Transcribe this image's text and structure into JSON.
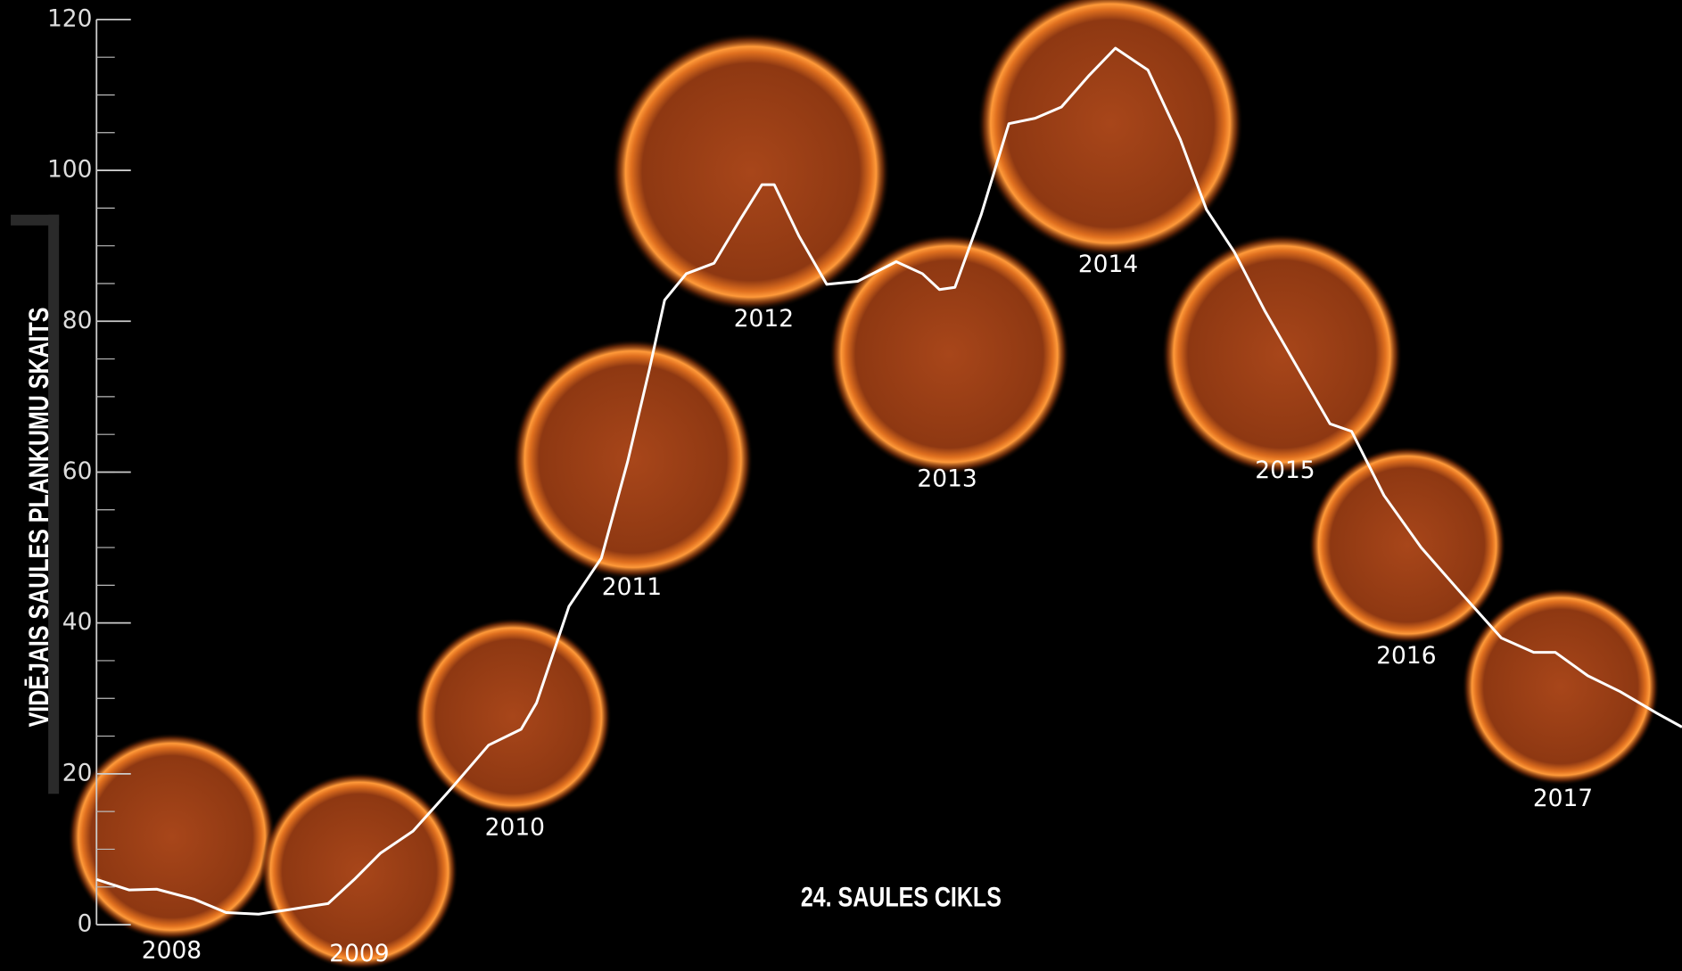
{
  "chart_data": {
    "type": "line",
    "title": "24. SAULES CIKLS",
    "y_label": "VIDĒJAIS SAULES PLANKUMU SKAITS",
    "year_labels": [
      "2008",
      "2009",
      "2010",
      "2011",
      "2012",
      "2013",
      "2014",
      "2015",
      "2016",
      "2017"
    ],
    "ylim": [
      0,
      120
    ],
    "yticks": [
      0,
      20,
      40,
      60,
      80,
      100,
      120
    ],
    "yticks_minor": [
      0,
      5,
      10,
      15,
      20,
      25,
      30,
      35,
      40,
      45,
      50,
      55,
      60,
      65,
      70,
      75,
      80,
      85,
      90,
      95,
      100,
      105,
      110,
      115,
      120
    ],
    "xlim": [
      2007.51,
      2017.78
    ],
    "x": [
      2007.51,
      2007.72,
      2007.9,
      2008.14,
      2008.35,
      2008.56,
      2008.76,
      2009.01,
      2009.18,
      2009.35,
      2009.56,
      2009.81,
      2010.05,
      2010.26,
      2010.36,
      2010.57,
      2010.78,
      2010.95,
      2011.09,
      2011.19,
      2011.33,
      2011.51,
      2011.68,
      2011.82,
      2011.9,
      2012.06,
      2012.24,
      2012.44,
      2012.69,
      2012.86,
      2012.97,
      2013.07,
      2013.24,
      2013.42,
      2013.59,
      2013.76,
      2013.94,
      2014.11,
      2014.32,
      2014.53,
      2014.7,
      2014.88,
      2015.08,
      2015.26,
      2015.5,
      2015.64,
      2015.85,
      2016.09,
      2016.33,
      2016.61,
      2016.82,
      2016.96,
      2017.17,
      2017.38,
      2017.62,
      2017.78
    ],
    "series": [
      {
        "color": "#ffffff",
        "values": [
          6.0,
          4.6,
          4.7,
          3.4,
          1.6,
          1.4,
          2.0,
          2.8,
          6.0,
          9.5,
          12.4,
          18.1,
          23.8,
          25.9,
          29.4,
          42.2,
          48.6,
          61.4,
          73.5,
          82.8,
          86.3,
          87.7,
          93.5,
          98.1,
          98.1,
          91.3,
          84.9,
          85.3,
          87.9,
          86.3,
          84.2,
          84.5,
          94.1,
          106.2,
          106.9,
          108.4,
          112.6,
          116.2,
          113.3,
          104.1,
          94.8,
          89.2,
          81.3,
          74.9,
          66.4,
          65.4,
          56.9,
          50.0,
          44.4,
          38.0,
          36.1,
          36.1,
          33.0,
          30.9,
          28.0,
          26.2
        ]
      }
    ]
  }
}
